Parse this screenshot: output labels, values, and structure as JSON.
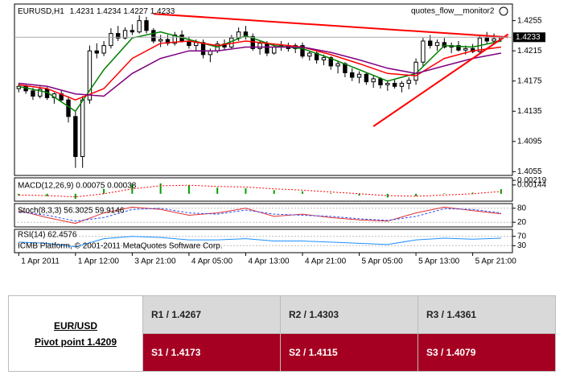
{
  "chart_data": [
    {
      "type": "candlestick",
      "title": "EURUSD,H1",
      "tool_label": "quotes_flow__monitor2",
      "categories": [
        "1 Apr 2011",
        null,
        null,
        null,
        null,
        null,
        null,
        null,
        "1 Apr 12:00",
        null,
        null,
        null,
        null,
        null,
        null,
        null,
        "3 Apr 21:00",
        null,
        null,
        null,
        null,
        null,
        null,
        null,
        "4 Apr 05:00",
        null,
        null,
        null,
        null,
        null,
        null,
        null,
        "4 Apr 13:00",
        null,
        null,
        null,
        null,
        null,
        null,
        null,
        "4 Apr 21:00",
        null,
        null,
        null,
        null,
        null,
        null,
        null,
        "5 Apr 05:00",
        null,
        null,
        null,
        null,
        null,
        null,
        null,
        "5 Apr 13:00",
        null,
        null,
        null,
        null,
        null,
        null,
        null,
        "5 Apr 21:00",
        null,
        null,
        null,
        null
      ],
      "ohlc": {
        "open": [
          1.4165,
          1.4168,
          1.4162,
          1.4155,
          1.4164,
          1.4153,
          1.4158,
          1.415,
          1.4128,
          1.4075,
          1.415,
          1.4215,
          1.4212,
          1.4222,
          1.4238,
          1.4232,
          1.4242,
          1.424,
          1.4255,
          1.4242,
          1.4228,
          1.423,
          1.4225,
          1.4236,
          1.4228,
          1.4222,
          1.4226,
          1.421,
          1.4215,
          1.4224,
          1.422,
          1.4232,
          1.424,
          1.4234,
          1.4218,
          1.4225,
          1.4212,
          1.422,
          1.4222,
          1.4218,
          1.4222,
          1.4208,
          1.4212,
          1.4203,
          1.4206,
          1.4195,
          1.4198,
          1.4186,
          1.418,
          1.4184,
          1.4174,
          1.4178,
          1.417,
          1.4172,
          1.4168,
          1.4172,
          1.4176,
          1.42,
          1.4228,
          1.4222,
          1.4226,
          1.422,
          1.4222,
          1.4216,
          1.4218,
          1.4214,
          1.4232,
          1.4228,
          1.4231
        ],
        "high": [
          1.4172,
          1.417,
          1.4166,
          1.4168,
          1.4167,
          1.416,
          1.4163,
          1.4155,
          1.4135,
          1.4155,
          1.4222,
          1.4225,
          1.4228,
          1.4245,
          1.4248,
          1.4246,
          1.425,
          1.4262,
          1.426,
          1.4245,
          1.4236,
          1.4236,
          1.424,
          1.4242,
          1.4234,
          1.423,
          1.423,
          1.4218,
          1.4228,
          1.423,
          1.4236,
          1.4246,
          1.4248,
          1.4238,
          1.4228,
          1.4228,
          1.4224,
          1.4228,
          1.4226,
          1.4225,
          1.4226,
          1.4215,
          1.4214,
          1.421,
          1.4208,
          1.4202,
          1.42,
          1.4192,
          1.4188,
          1.4186,
          1.4182,
          1.418,
          1.4176,
          1.4178,
          1.4175,
          1.418,
          1.4205,
          1.4232,
          1.4236,
          1.423,
          1.4232,
          1.4226,
          1.4228,
          1.4222,
          1.4224,
          1.4236,
          1.424,
          1.4238,
          1.4234
        ],
        "low": [
          1.416,
          1.4158,
          1.415,
          1.4152,
          1.415,
          1.4145,
          1.4148,
          1.412,
          1.406,
          1.406,
          1.4145,
          1.4205,
          1.4208,
          1.4218,
          1.4228,
          1.423,
          1.4236,
          1.4238,
          1.4238,
          1.4225,
          1.422,
          1.4222,
          1.4222,
          1.4226,
          1.4218,
          1.4215,
          1.4205,
          1.42,
          1.4212,
          1.4216,
          1.4218,
          1.4228,
          1.423,
          1.4215,
          1.421,
          1.4208,
          1.421,
          1.4215,
          1.4214,
          1.4212,
          1.4205,
          1.4202,
          1.4198,
          1.4196,
          1.419,
          1.4185,
          1.418,
          1.4175,
          1.4172,
          1.417,
          1.4166,
          1.4165,
          1.4162,
          1.4165,
          1.416,
          1.4164,
          1.417,
          1.4195,
          1.4218,
          1.4215,
          1.4218,
          1.4212,
          1.4214,
          1.421,
          1.4212,
          1.421,
          1.4224,
          1.4224,
          1.4227
        ],
        "close": [
          1.4168,
          1.4162,
          1.4155,
          1.4164,
          1.4153,
          1.4158,
          1.415,
          1.4128,
          1.4075,
          1.415,
          1.4215,
          1.4212,
          1.4222,
          1.4238,
          1.4232,
          1.4242,
          1.424,
          1.4255,
          1.4242,
          1.4228,
          1.423,
          1.4225,
          1.4236,
          1.4228,
          1.4222,
          1.4226,
          1.421,
          1.4215,
          1.4224,
          1.422,
          1.4232,
          1.424,
          1.4234,
          1.4218,
          1.4225,
          1.4212,
          1.422,
          1.4222,
          1.4218,
          1.4222,
          1.4208,
          1.4212,
          1.4203,
          1.4206,
          1.4195,
          1.4198,
          1.4186,
          1.418,
          1.4184,
          1.4174,
          1.4178,
          1.417,
          1.4172,
          1.4168,
          1.4172,
          1.4176,
          1.42,
          1.4228,
          1.4222,
          1.4226,
          1.422,
          1.4222,
          1.4216,
          1.4218,
          1.4214,
          1.4232,
          1.4228,
          1.4231,
          1.4233
        ]
      },
      "series": [
        {
          "color": "#008000",
          "x": [
            0,
            4,
            8,
            12,
            16,
            20,
            24,
            28,
            32,
            36,
            40,
            44,
            48,
            52,
            56,
            60,
            64,
            68
          ],
          "values": [
            1.4168,
            1.416,
            1.4135,
            1.419,
            1.4232,
            1.424,
            1.423,
            1.422,
            1.4235,
            1.4222,
            1.4218,
            1.4205,
            1.419,
            1.4175,
            1.4185,
            1.4222,
            1.422,
            1.4228
          ]
        },
        {
          "color": "#ff0000",
          "x": [
            0,
            4,
            8,
            12,
            16,
            20,
            24,
            28,
            32,
            36,
            40,
            44,
            48,
            52,
            56,
            60,
            64,
            68
          ],
          "values": [
            1.417,
            1.4165,
            1.415,
            1.4165,
            1.4205,
            1.4225,
            1.4228,
            1.4222,
            1.4228,
            1.4224,
            1.422,
            1.421,
            1.4198,
            1.4185,
            1.4182,
            1.4205,
            1.4215,
            1.422
          ]
        },
        {
          "color": "#800080",
          "x": [
            0,
            4,
            8,
            12,
            16,
            20,
            24,
            28,
            32,
            36,
            40,
            44,
            48,
            52,
            56,
            60,
            64,
            68
          ],
          "values": [
            1.4172,
            1.4168,
            1.4158,
            1.4155,
            1.4185,
            1.4205,
            1.4215,
            1.4215,
            1.422,
            1.422,
            1.422,
            1.4213,
            1.4203,
            1.4192,
            1.4185,
            1.4195,
            1.4205,
            1.4212
          ]
        }
      ],
      "trendlines": [
        {
          "color": "#ff0000",
          "x": [
            19,
            69
          ],
          "values": [
            1.4264,
            1.4233
          ]
        },
        {
          "color": "#ff0000",
          "x": [
            50,
            69
          ],
          "values": [
            1.4115,
            1.4237
          ]
        }
      ],
      "xlim": [
        -0.6,
        69.6
      ],
      "ylim": [
        1.405,
        1.4277
      ],
      "yticks": [
        1.4255,
        1.4215,
        1.4175,
        1.4135,
        1.4095,
        1.4055
      ]
    },
    {
      "type": "macd",
      "title": "MACD(12,26,9) 0.00075 0.00038",
      "x": [
        0,
        4,
        8,
        12,
        16,
        20,
        24,
        28,
        32,
        36,
        40,
        44,
        48,
        52,
        56,
        60,
        64,
        68
      ],
      "values": [
        -0.0003,
        -0.0004,
        -0.0008,
        0.0008,
        0.0016,
        0.0017,
        0.0014,
        0.001,
        0.0009,
        0.0006,
        0.0004,
        0.0001,
        -0.0003,
        -0.0006,
        -0.0004,
        0.0001,
        0.0002,
        0.00075
      ],
      "signal": [
        -0.0002,
        -0.0003,
        -0.0005,
        0.0,
        0.0008,
        0.0013,
        0.0014,
        0.0012,
        0.0011,
        0.0008,
        0.0006,
        0.0003,
        0.0,
        -0.0003,
        -0.0004,
        -0.0002,
        0.0,
        0.00038
      ],
      "color": "#00a000",
      "signal_color": "#ff0000",
      "xlim": [
        -0.6,
        69.6
      ],
      "ylim": [
        -0.0012,
        0.0026
      ],
      "yticks": [
        0.00219,
        0.00144
      ]
    },
    {
      "type": "oscillator",
      "title": "Stoch(8,3,3) 56.3025 59.9146",
      "x": [
        0,
        4,
        8,
        12,
        16,
        20,
        24,
        28,
        32,
        36,
        40,
        44,
        48,
        52,
        56,
        60,
        64,
        68
      ],
      "series": [
        {
          "color": "#e03030",
          "values": [
            70,
            40,
            15,
            60,
            85,
            75,
            50,
            60,
            80,
            45,
            55,
            40,
            30,
            25,
            60,
            85,
            70,
            56
          ]
        },
        {
          "color": "#3050ff",
          "dashed": true,
          "values": [
            65,
            50,
            25,
            40,
            75,
            80,
            60,
            55,
            72,
            55,
            50,
            45,
            35,
            28,
            45,
            78,
            75,
            60
          ]
        }
      ],
      "xlim": [
        -0.6,
        69.6
      ],
      "ylim": [
        0,
        100
      ],
      "yticks": [
        80,
        20
      ]
    },
    {
      "type": "oscillator",
      "title": "RSI(14) 62.4576",
      "footer": "ICMB Platform, © 2001-2011 MetaQuotes Software Corp.",
      "x": [
        0,
        4,
        8,
        12,
        16,
        20,
        24,
        28,
        32,
        36,
        40,
        44,
        48,
        52,
        56,
        60,
        64,
        68
      ],
      "series": [
        {
          "color": "#1e90ff",
          "values": [
            45,
            40,
            25,
            60,
            70,
            65,
            55,
            55,
            60,
            50,
            50,
            45,
            40,
            35,
            55,
            62,
            58,
            62
          ]
        }
      ],
      "xlim": [
        -0.6,
        69.6
      ],
      "ylim": [
        0,
        100
      ],
      "yticks": [
        70,
        30
      ]
    }
  ],
  "table": {
    "pair": "EUR/USD",
    "pivot": "Pivot point 1.4209",
    "rows": [
      [
        "R1 / 1.4267",
        "R2 / 1.4303",
        "R3 / 1.4361"
      ],
      [
        "S1 / 1.4173",
        "S2 / 1.4115",
        "S3 / 1.4079"
      ]
    ]
  }
}
